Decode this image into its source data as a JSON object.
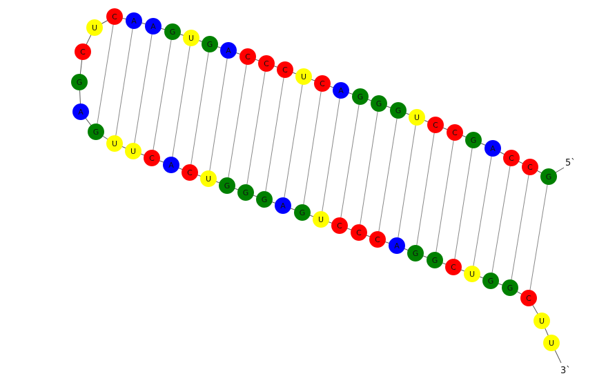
{
  "structure": {
    "five_prime_label": "5`",
    "three_prime_label": "3`",
    "sequence": [
      "G",
      "C",
      "C",
      "A",
      "G",
      "C",
      "C",
      "U",
      "G",
      "G",
      "G",
      "A",
      "C",
      "U",
      "C",
      "C",
      "C",
      "A",
      "G",
      "U",
      "G",
      "A",
      "A",
      "C",
      "U",
      "C",
      "G",
      "A",
      "G",
      "U",
      "U",
      "C",
      "A",
      "C",
      "U",
      "G",
      "G",
      "G",
      "A",
      "G",
      "U",
      "C",
      "C",
      "C",
      "A",
      "G",
      "G",
      "C",
      "U",
      "G",
      "G",
      "C",
      "U",
      "U"
    ],
    "base_pairs": [
      [
        0,
        51
      ],
      [
        1,
        50
      ],
      [
        2,
        49
      ],
      [
        3,
        48
      ],
      [
        4,
        47
      ],
      [
        5,
        46
      ],
      [
        6,
        45
      ],
      [
        7,
        44
      ],
      [
        8,
        43
      ],
      [
        9,
        42
      ],
      [
        10,
        41
      ],
      [
        11,
        40
      ],
      [
        12,
        39
      ],
      [
        13,
        38
      ],
      [
        14,
        37
      ],
      [
        15,
        36
      ],
      [
        16,
        35
      ],
      [
        17,
        34
      ],
      [
        18,
        33
      ],
      [
        19,
        32
      ],
      [
        20,
        31
      ],
      [
        21,
        30
      ],
      [
        22,
        29
      ],
      [
        23,
        28
      ]
    ],
    "colors": {
      "A": "#0000ff",
      "C": "#ff0000",
      "G": "#008000",
      "U": "#ffff00"
    }
  }
}
